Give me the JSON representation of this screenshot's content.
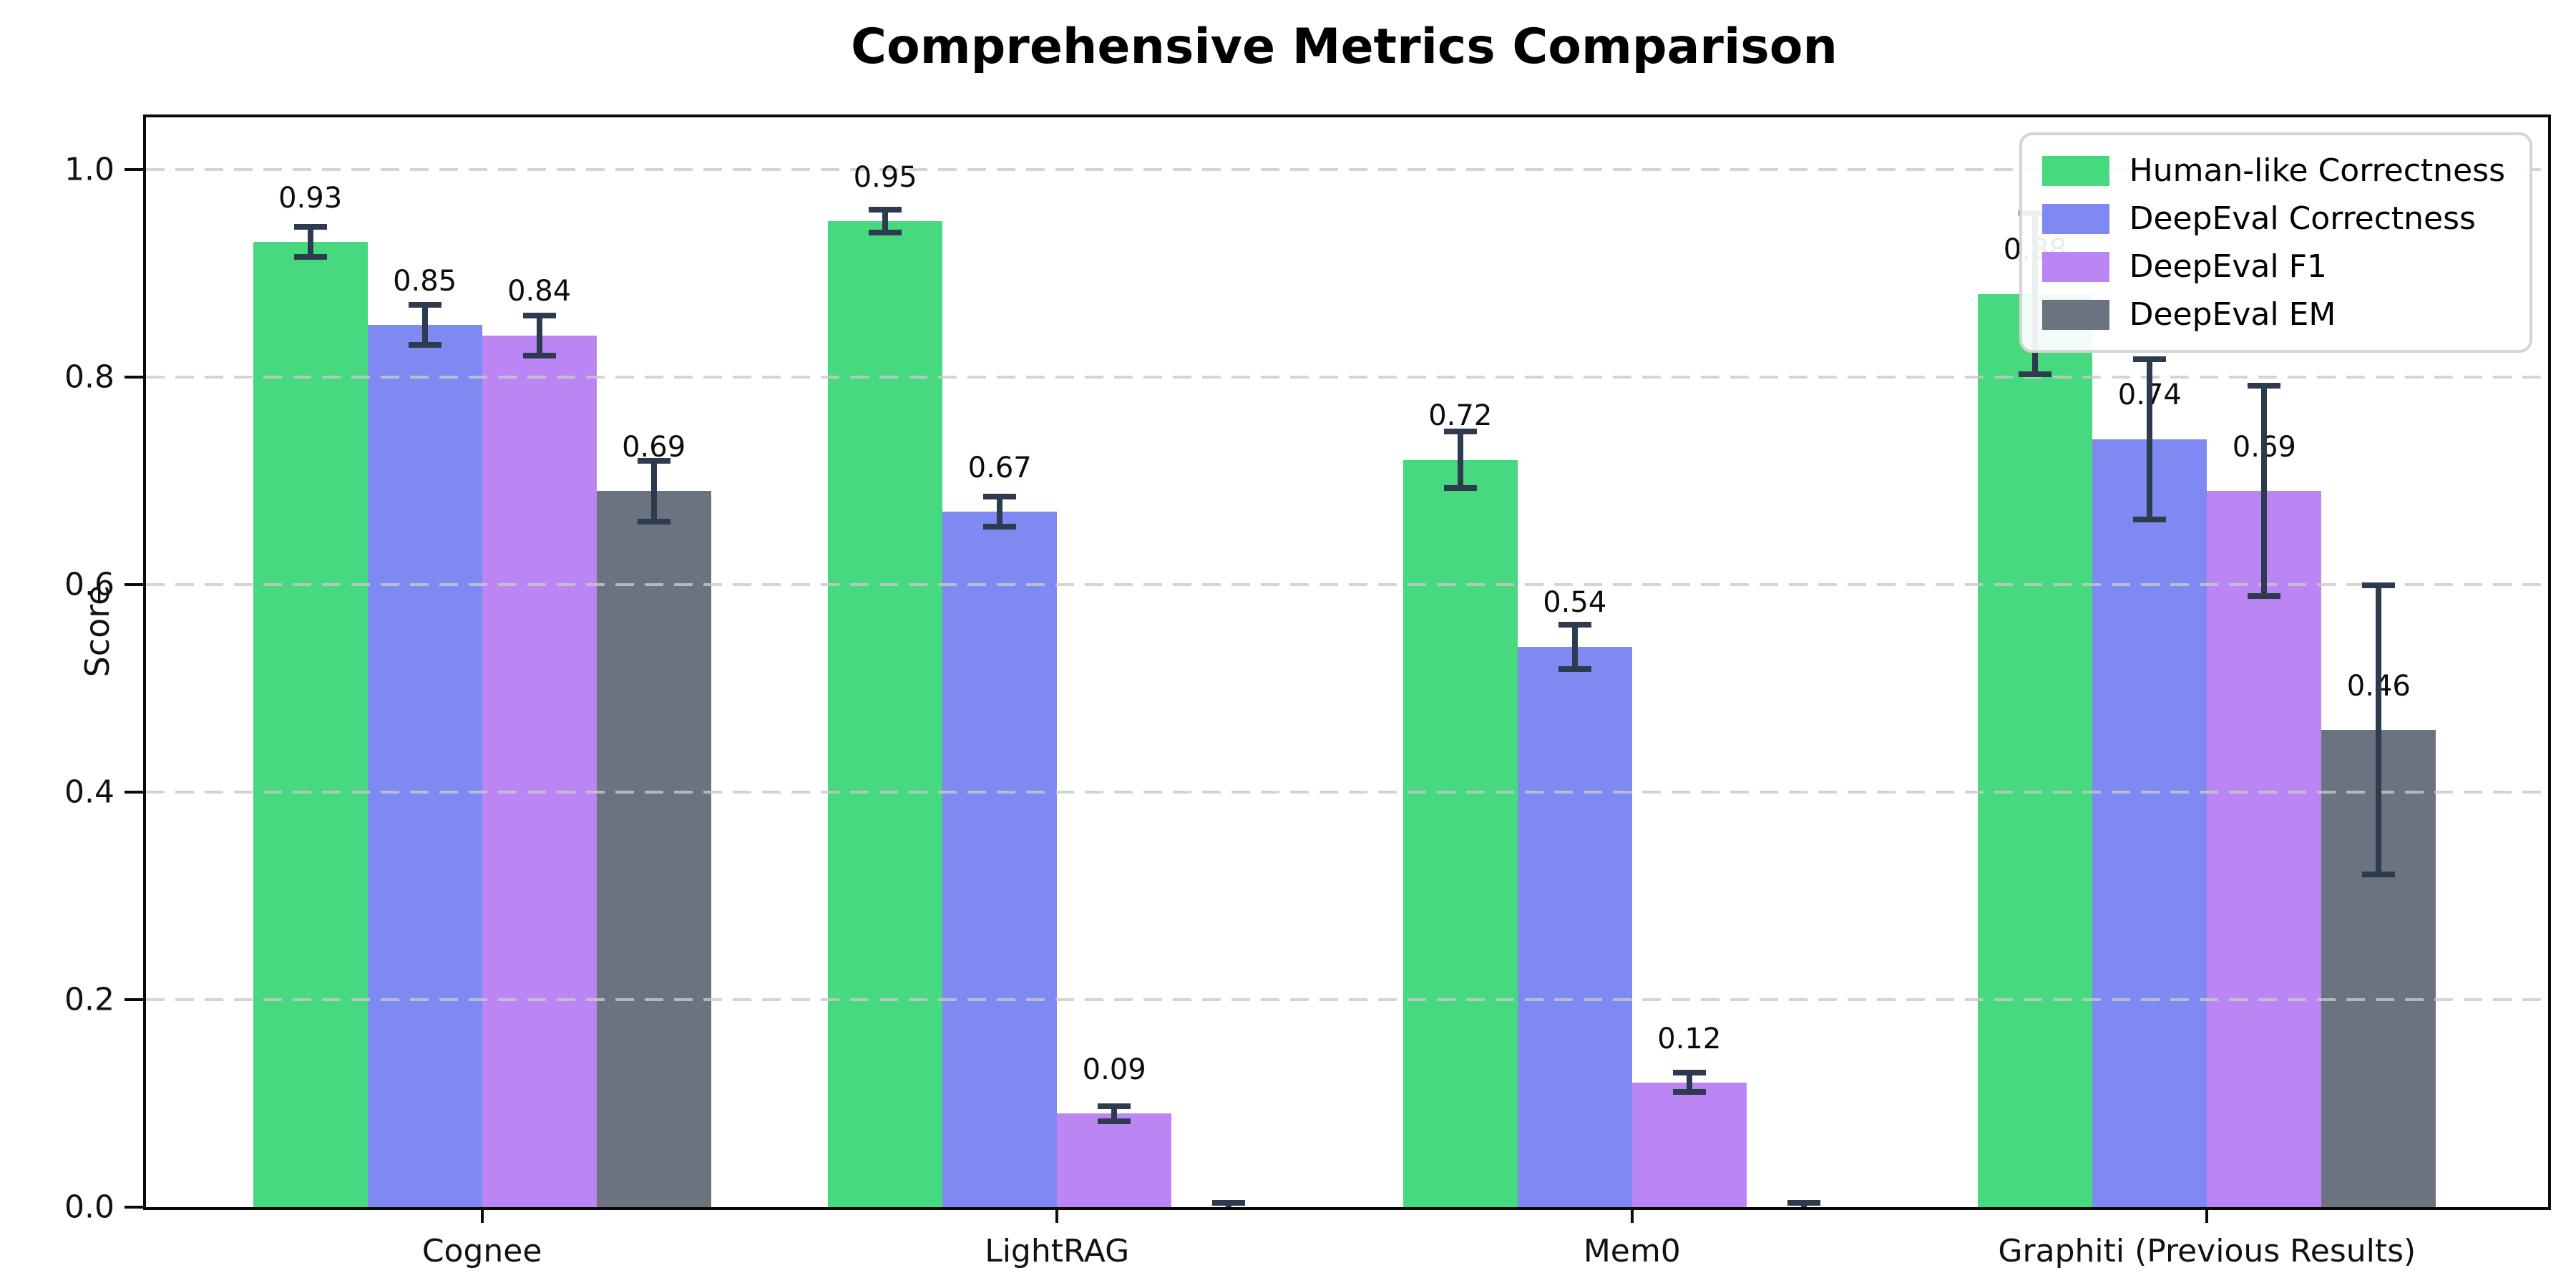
{
  "figure": {
    "title": "Comprehensive Metrics Comparison",
    "ylabel": "Score"
  },
  "chart_data": {
    "type": "bar",
    "title": "Comprehensive Metrics Comparison",
    "xlabel": "",
    "ylabel": "Score",
    "categories": [
      "Cognee",
      "LightRAG",
      "Mem0",
      "Graphiti (Previous Results)"
    ],
    "series": [
      {
        "name": "Human-like Correctness",
        "color": "#46d97f",
        "values": [
          0.93,
          0.95,
          0.72,
          0.88
        ],
        "errors": [
          0.015,
          0.012,
          0.028,
          0.078
        ],
        "labels": [
          "0.93",
          "0.95",
          "0.72",
          "0.88"
        ]
      },
      {
        "name": "DeepEval Correctness",
        "color": "#7e89f1",
        "values": [
          0.85,
          0.67,
          0.54,
          0.74
        ],
        "errors": [
          0.02,
          0.015,
          0.022,
          0.078
        ],
        "labels": [
          "0.85",
          "0.67",
          "0.54",
          "0.74"
        ]
      },
      {
        "name": "DeepEval F1",
        "color": "#bb86f4",
        "values": [
          0.84,
          0.09,
          0.12,
          0.69
        ],
        "errors": [
          0.02,
          0.008,
          0.01,
          0.102
        ],
        "labels": [
          "0.84",
          "0.09",
          "0.12",
          "0.69"
        ]
      },
      {
        "name": "DeepEval EM",
        "color": "#6b7280",
        "values": [
          0.69,
          0.0,
          0.0,
          0.46
        ],
        "errors": [
          0.03,
          0.005,
          0.005,
          0.14
        ],
        "labels": [
          "0.69",
          "",
          "",
          "0.46"
        ]
      }
    ],
    "y_ticks": [
      0.0,
      0.2,
      0.4,
      0.6,
      0.8,
      1.0
    ],
    "y_tick_labels": [
      "0.0",
      "0.2",
      "0.4",
      "0.6",
      "0.8",
      "1.0"
    ],
    "ylim": [
      0,
      1.05
    ],
    "grid": {
      "axis": "y",
      "style": "dashed",
      "color": "#c9c9c9",
      "on": true
    },
    "legend": {
      "position": "upper right"
    },
    "error_bar_color": "#2e3b4e",
    "bar_label_offset": 0.025
  }
}
